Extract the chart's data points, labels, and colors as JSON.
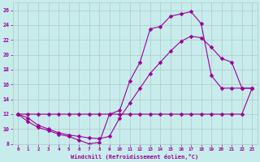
{
  "xlabel": "Windchill (Refroidissement éolien,°C)",
  "bg_color": "#c8ecec",
  "line_color": "#990099",
  "grid_color": "#b0c8c8",
  "xlim": [
    -0.5,
    23.5
  ],
  "ylim": [
    8,
    27
  ],
  "xticks": [
    0,
    1,
    2,
    3,
    4,
    5,
    6,
    7,
    8,
    9,
    10,
    11,
    12,
    13,
    14,
    15,
    16,
    17,
    18,
    19,
    20,
    21,
    22,
    23
  ],
  "yticks": [
    8,
    10,
    12,
    14,
    16,
    18,
    20,
    22,
    24,
    26
  ],
  "line1_x": [
    0,
    1,
    2,
    3,
    4,
    5,
    6,
    7,
    8,
    9,
    10,
    11,
    12,
    13,
    14,
    15,
    16,
    17,
    18,
    19,
    20,
    21,
    22,
    23
  ],
  "line1_y": [
    12,
    11,
    10.2,
    9.8,
    9.3,
    9.0,
    8.5,
    8.0,
    8.2,
    12.0,
    12.5,
    16.5,
    19.0,
    23.5,
    23.8,
    25.2,
    25.5,
    25.8,
    24.2,
    17.2,
    15.5,
    15.5,
    15.5,
    15.5
  ],
  "line2_x": [
    0,
    1,
    2,
    3,
    4,
    5,
    6,
    7,
    8,
    9,
    10,
    11,
    12,
    13,
    14,
    15,
    16,
    17,
    18,
    19,
    20,
    21,
    22,
    23
  ],
  "line2_y": [
    12,
    11.5,
    10.5,
    10.0,
    9.5,
    9.2,
    9.0,
    8.8,
    8.7,
    9.0,
    11.5,
    13.5,
    15.5,
    17.5,
    19.0,
    20.5,
    21.8,
    22.5,
    22.3,
    21.0,
    19.5,
    19.0,
    15.5,
    15.5
  ],
  "line3_x": [
    0,
    1,
    2,
    3,
    4,
    5,
    6,
    7,
    8,
    9,
    10,
    11,
    12,
    13,
    14,
    15,
    16,
    17,
    18,
    19,
    20,
    21,
    22,
    23
  ],
  "line3_y": [
    12,
    12,
    12,
    12,
    12,
    12,
    12,
    12,
    12,
    12,
    12,
    12,
    12,
    12,
    12,
    12,
    12,
    12,
    12,
    12,
    12,
    12,
    12,
    15.5
  ]
}
